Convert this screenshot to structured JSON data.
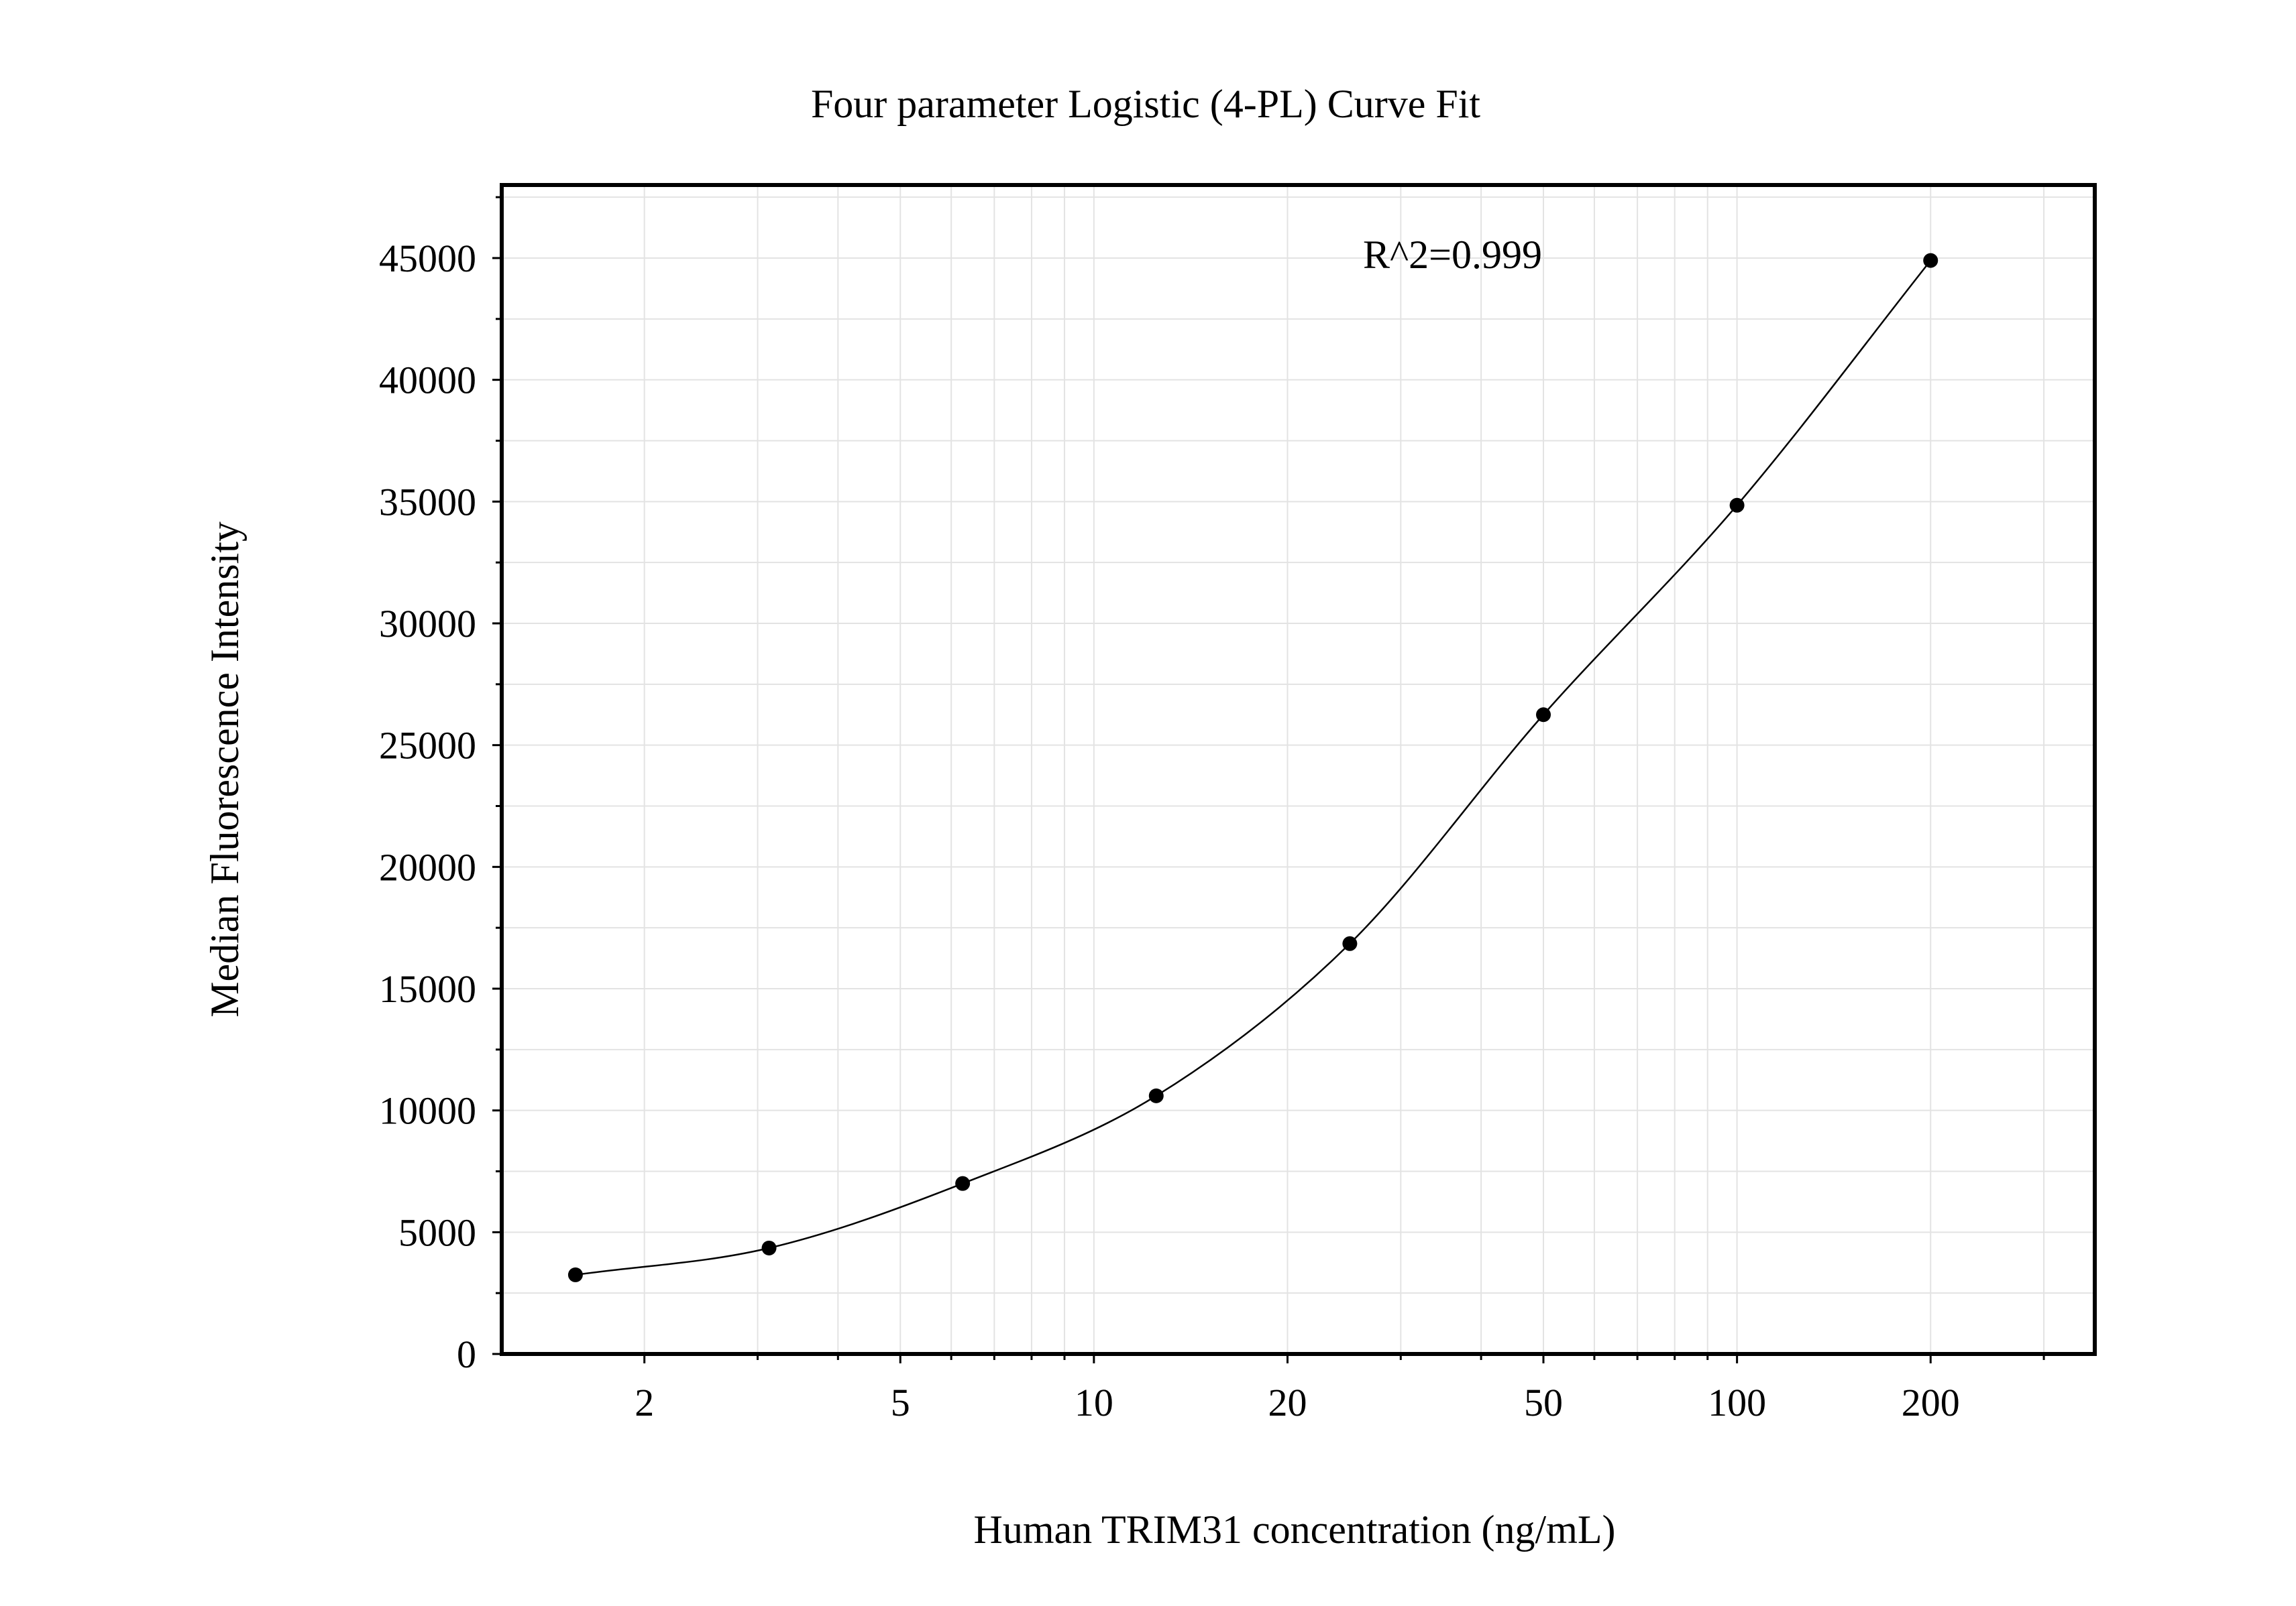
{
  "chart_data": {
    "type": "scatter",
    "title": "Four parameter Logistic (4-PL) Curve Fit",
    "xlabel": "Human TRIM31 concentration (ng/mL)",
    "ylabel": "Median Fluorescence Intensity",
    "x_scale": "log",
    "xlim": [
      1.2,
      360
    ],
    "ylim": [
      0,
      48000
    ],
    "x_ticks": [
      2,
      5,
      10,
      20,
      50,
      100,
      200
    ],
    "x_tick_labels": [
      "2",
      "5",
      "10",
      "20",
      "50",
      "100",
      "200"
    ],
    "y_ticks": [
      0,
      5000,
      10000,
      15000,
      20000,
      25000,
      30000,
      35000,
      40000,
      45000
    ],
    "y_tick_labels": [
      "0",
      "5000",
      "10000",
      "15000",
      "20000",
      "25000",
      "30000",
      "35000",
      "40000",
      "45000"
    ],
    "grid": true,
    "annotation": "R^2=0.999",
    "series": [
      {
        "x": [
          1.5625,
          3.125,
          6.25,
          12.5,
          25,
          50,
          100,
          200
        ],
        "y": [
          3250,
          4350,
          7000,
          10600,
          16850,
          26250,
          34850,
          44900
        ],
        "fit": "4PL curve"
      }
    ]
  }
}
